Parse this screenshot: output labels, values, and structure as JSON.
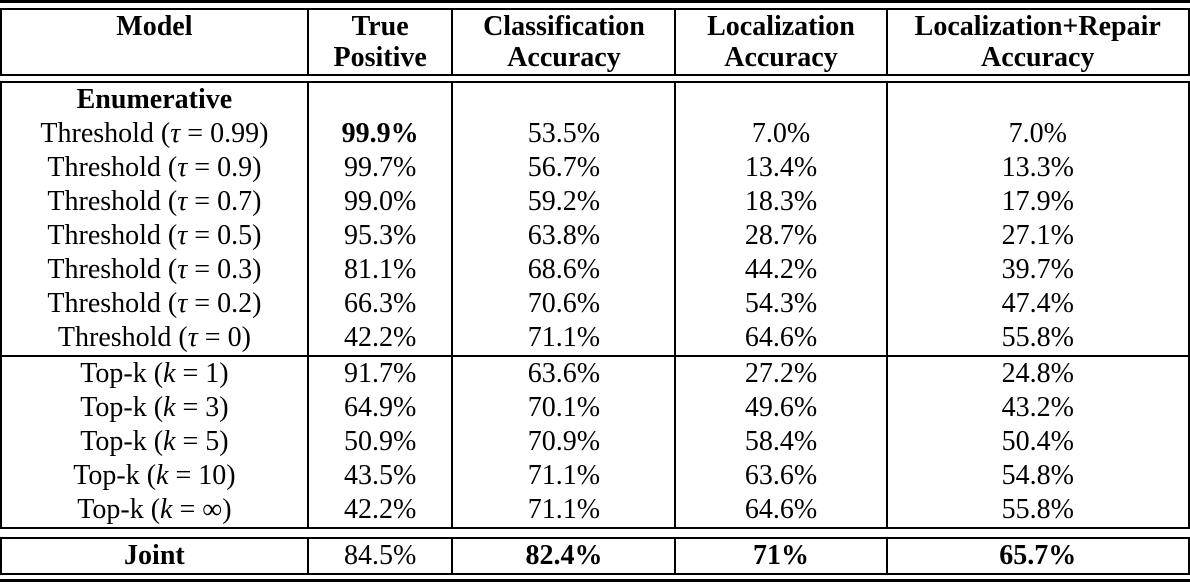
{
  "table": {
    "headers": [
      {
        "lines": [
          "Model"
        ]
      },
      {
        "lines": [
          "True",
          "Positive"
        ]
      },
      {
        "lines": [
          "Classification",
          "Accuracy"
        ]
      },
      {
        "lines": [
          "Localization",
          "Accuracy"
        ]
      },
      {
        "lines": [
          "Localization+Repair",
          "Accuracy"
        ]
      }
    ],
    "body_rows": [
      {
        "model": {
          "pre": "Enumerative"
        },
        "model_bold": true,
        "values": [
          "",
          "",
          "",
          ""
        ],
        "bold": [
          false,
          false,
          false,
          false
        ]
      },
      {
        "model": {
          "pre": "Threshold (",
          "var": "τ",
          "post": " = 0.99)"
        },
        "model_bold": false,
        "values": [
          "99.9%",
          "53.5%",
          "7.0%",
          "7.0%"
        ],
        "bold": [
          true,
          false,
          false,
          false
        ]
      },
      {
        "model": {
          "pre": "Threshold (",
          "var": "τ",
          "post": " = 0.9)"
        },
        "model_bold": false,
        "values": [
          "99.7%",
          "56.7%",
          "13.4%",
          "13.3%"
        ],
        "bold": [
          false,
          false,
          false,
          false
        ]
      },
      {
        "model": {
          "pre": "Threshold (",
          "var": "τ",
          "post": " = 0.7)"
        },
        "model_bold": false,
        "values": [
          "99.0%",
          "59.2%",
          "18.3%",
          "17.9%"
        ],
        "bold": [
          false,
          false,
          false,
          false
        ]
      },
      {
        "model": {
          "pre": "Threshold (",
          "var": "τ",
          "post": " = 0.5)"
        },
        "model_bold": false,
        "values": [
          "95.3%",
          "63.8%",
          "28.7%",
          "27.1%"
        ],
        "bold": [
          false,
          false,
          false,
          false
        ]
      },
      {
        "model": {
          "pre": "Threshold (",
          "var": "τ",
          "post": " = 0.3)"
        },
        "model_bold": false,
        "values": [
          "81.1%",
          "68.6%",
          "44.2%",
          "39.7%"
        ],
        "bold": [
          false,
          false,
          false,
          false
        ]
      },
      {
        "model": {
          "pre": "Threshold (",
          "var": "τ",
          "post": " = 0.2)"
        },
        "model_bold": false,
        "values": [
          "66.3%",
          "70.6%",
          "54.3%",
          "47.4%"
        ],
        "bold": [
          false,
          false,
          false,
          false
        ]
      },
      {
        "model": {
          "pre": "Threshold (",
          "var": "τ",
          "post": " = 0)"
        },
        "model_bold": false,
        "values": [
          "42.2%",
          "71.1%",
          "64.6%",
          "55.8%"
        ],
        "bold": [
          false,
          false,
          false,
          false
        ]
      },
      {
        "model": {
          "pre": "Top-k (",
          "var": "k",
          "post": " = 1)"
        },
        "model_bold": false,
        "section_start": true,
        "values": [
          "91.7%",
          "63.6%",
          "27.2%",
          "24.8%"
        ],
        "bold": [
          false,
          false,
          false,
          false
        ]
      },
      {
        "model": {
          "pre": "Top-k (",
          "var": "k",
          "post": " = 3)"
        },
        "model_bold": false,
        "values": [
          "64.9%",
          "70.1%",
          "49.6%",
          "43.2%"
        ],
        "bold": [
          false,
          false,
          false,
          false
        ]
      },
      {
        "model": {
          "pre": "Top-k (",
          "var": "k",
          "post": " = 5)"
        },
        "model_bold": false,
        "values": [
          "50.9%",
          "70.9%",
          "58.4%",
          "50.4%"
        ],
        "bold": [
          false,
          false,
          false,
          false
        ]
      },
      {
        "model": {
          "pre": "Top-k (",
          "var": "k",
          "post": " = 10)"
        },
        "model_bold": false,
        "values": [
          "43.5%",
          "71.1%",
          "63.6%",
          "54.8%"
        ],
        "bold": [
          false,
          false,
          false,
          false
        ]
      },
      {
        "model": {
          "pre": "Top-k (",
          "var": "k",
          "post": " = ∞)"
        },
        "model_bold": false,
        "values": [
          "42.2%",
          "71.1%",
          "64.6%",
          "55.8%"
        ],
        "bold": [
          false,
          false,
          false,
          false
        ]
      }
    ],
    "joint_row": {
      "model": {
        "pre": "Joint"
      },
      "model_bold": true,
      "values": [
        "84.5%",
        "82.4%",
        "71%",
        "65.7%"
      ],
      "bold": [
        false,
        true,
        true,
        true
      ]
    },
    "colors": {
      "text": "#000000",
      "background": "#ffffff",
      "rule": "#000000"
    }
  }
}
